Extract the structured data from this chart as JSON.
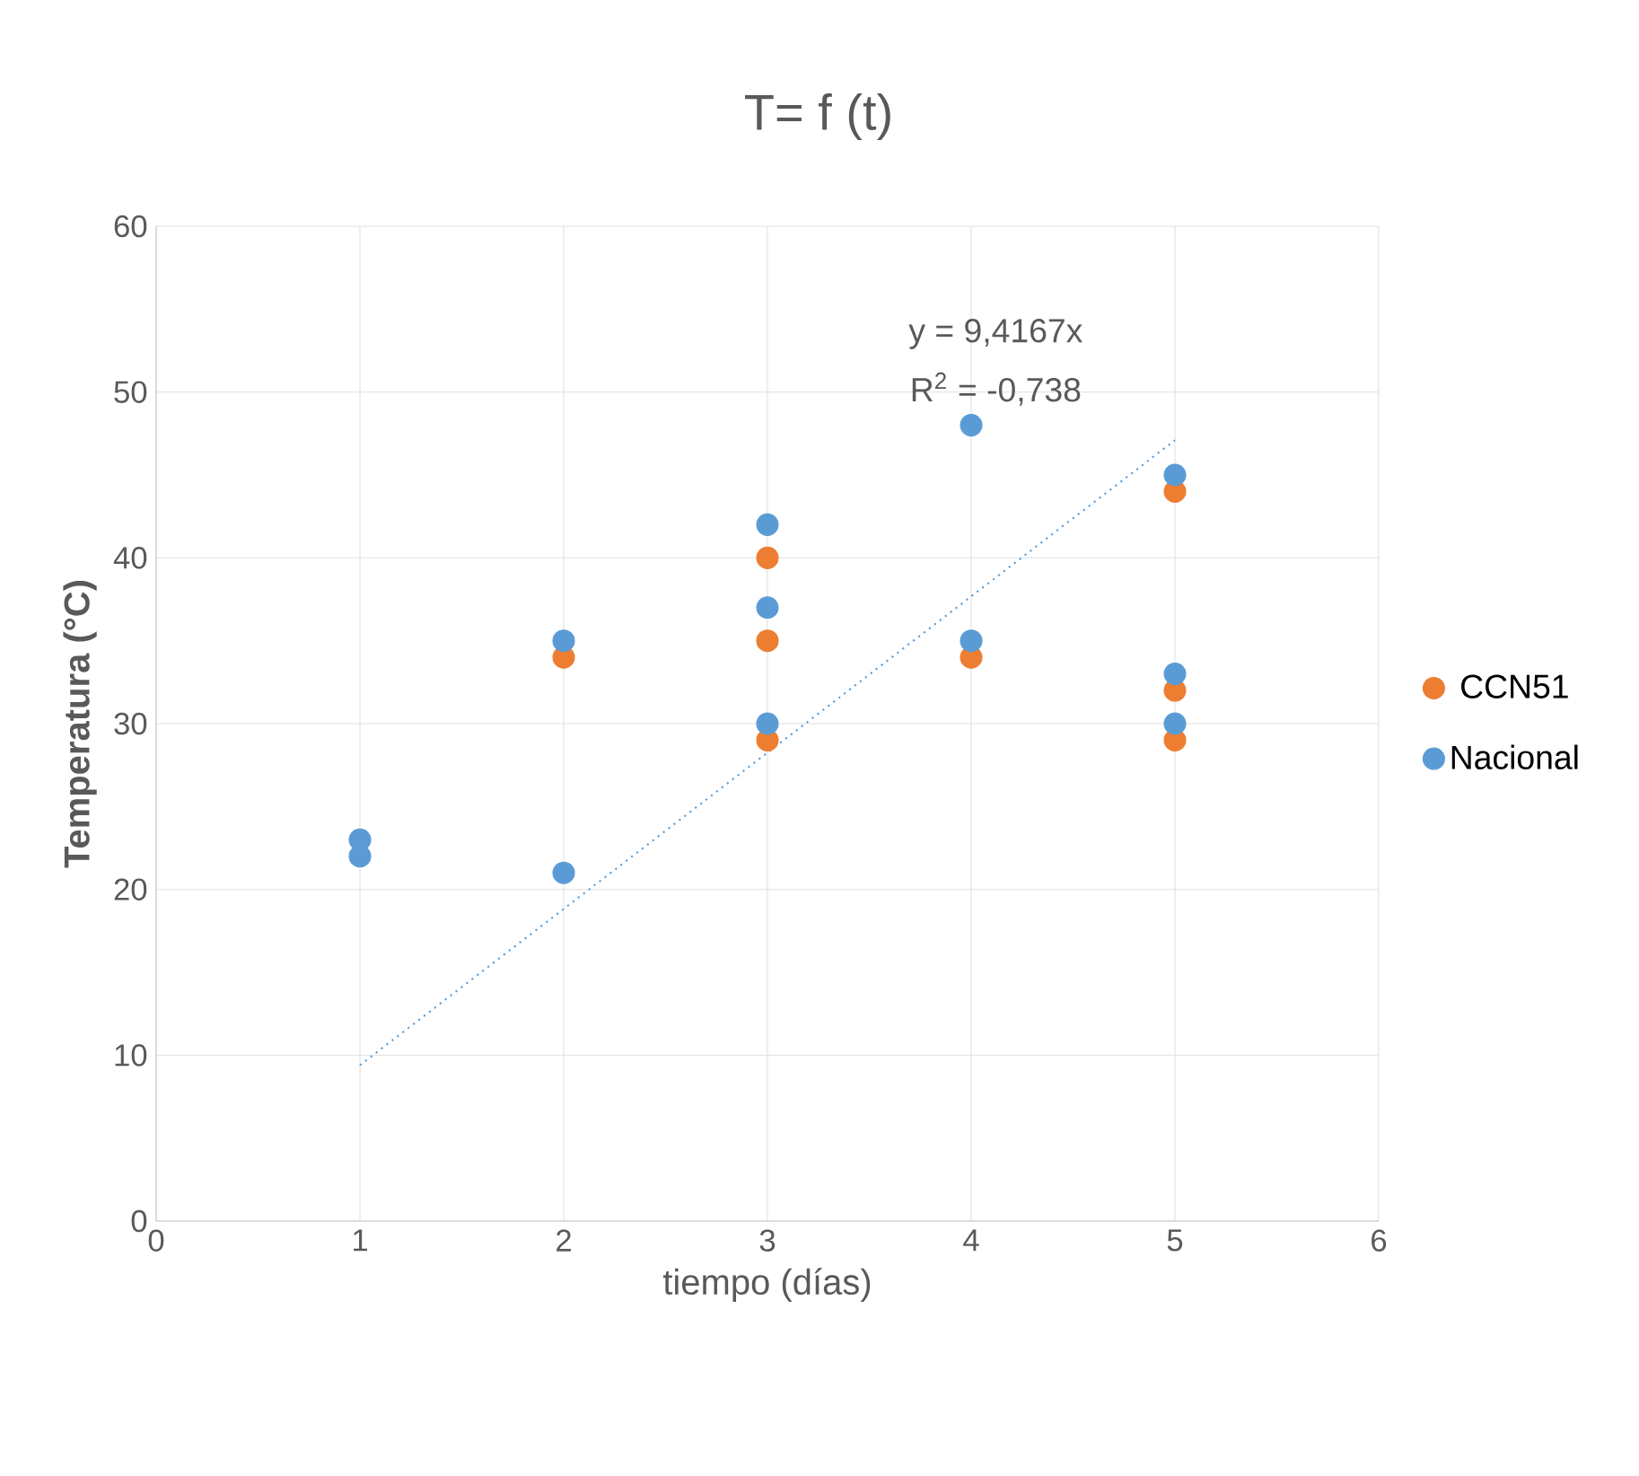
{
  "chart_data": {
    "type": "scatter",
    "title": "T= f (t)",
    "xlabel": "tiempo (días)",
    "ylabel": "Temperatura (°C)",
    "annotations": [
      "y = 9,4167x",
      "R$^{2}$ = -0,738"
    ],
    "xlim": [
      0,
      6
    ],
    "xticks": [
      0,
      1,
      2,
      3,
      4,
      5,
      6
    ],
    "ylim": [
      0,
      60
    ],
    "yticks": [
      0,
      10,
      20,
      30,
      40,
      50,
      60
    ],
    "grid": true,
    "legend": "right",
    "marker": "circle",
    "series": [
      {
        "name": "CCN51",
        "color": "#ed7d31",
        "x": [
          2,
          3,
          3,
          3,
          4,
          5,
          5,
          5
        ],
        "values": [
          34,
          29,
          35,
          40,
          34,
          29,
          32,
          44
        ]
      },
      {
        "name": "Nacional",
        "color": "#5b9bd5",
        "x": [
          1,
          1,
          2,
          2,
          3,
          3,
          3,
          4,
          4,
          5,
          5,
          5
        ],
        "values": [
          22,
          23,
          21,
          35,
          30,
          37,
          42,
          35,
          48,
          30,
          33,
          45
        ]
      },
      {
        "type": "line",
        "color": "#5b9bd5",
        "line_style": "dotted",
        "marker": "none",
        "x": [
          1,
          5
        ],
        "values": [
          9.4,
          47.1
        ]
      }
    ]
  }
}
